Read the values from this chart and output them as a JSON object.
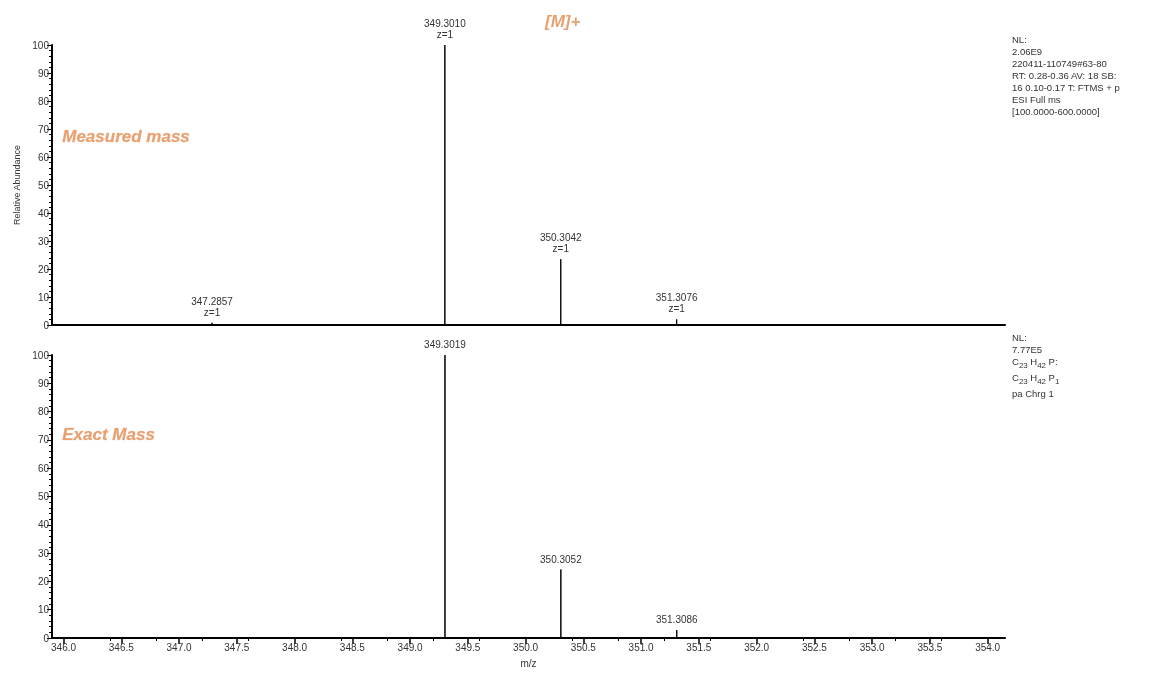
{
  "chart_data": [
    {
      "type": "line",
      "title": "[M]+",
      "ylabel": "Relative Abundance",
      "x": [
        345.9,
        347.2857,
        347.2857,
        347.2857,
        349.301,
        349.301,
        349.301,
        350.3042,
        350.3042,
        350.3042,
        351.3076,
        351.3076,
        351.3076,
        354.15
      ],
      "series": [
        {
          "color": "#000000",
          "values": [
            0,
            0,
            0.8,
            0,
            0,
            100,
            0,
            0,
            23.5,
            0,
            0,
            2,
            0,
            0
          ]
        }
      ],
      "xlim": [
        345.9,
        354.15
      ],
      "ylim": [
        0,
        100
      ],
      "yticks": [
        0,
        10,
        20,
        30,
        40,
        50,
        60,
        70,
        80,
        90,
        100
      ],
      "tick_labels": "y",
      "grid": false,
      "marker": "none",
      "line_style": "solid",
      "annotations": [
        "Measured mass",
        "NL:\n2.06E9\n220411-110749#63-80\nRT: 0.28-0.36  AV: 18 SB:\n16  0.10-0.17  T: FTMS + p\nESI Full ms\n[100.0000-600.0000]",
        {
          "text": "349.3010\nz=1",
          "x": 349.301,
          "y": 100
        },
        {
          "text": "350.3042\nz=1",
          "x": 350.3042,
          "y": 23.5
        },
        {
          "text": "347.2857\nz=1",
          "x": 347.2857,
          "y": 0.8
        },
        {
          "text": "351.3076\nz=1",
          "x": 351.3076,
          "y": 2
        }
      ]
    },
    {
      "type": "line",
      "xlabel": "m/z",
      "x": [
        345.9,
        349.3019,
        349.3019,
        349.3019,
        350.3052,
        350.3052,
        350.3052,
        351.3086,
        351.3086,
        351.3086,
        354.15
      ],
      "series": [
        {
          "color": "#000000",
          "values": [
            0,
            0,
            100,
            0,
            0,
            24.2,
            0,
            0,
            2.8,
            0,
            0
          ]
        }
      ],
      "xlim": [
        345.9,
        354.15
      ],
      "ylim": [
        0,
        100
      ],
      "yticks": [
        0,
        10,
        20,
        30,
        40,
        50,
        60,
        70,
        80,
        90,
        100
      ],
      "xticks": [
        {
          "value": 346,
          "label": "346.0"
        },
        346.5,
        {
          "value": 347,
          "label": "347.0"
        },
        347.5,
        {
          "value": 348,
          "label": "348.0"
        },
        348.5,
        {
          "value": 349,
          "label": "349.0"
        },
        349.5,
        {
          "value": 350,
          "label": "350.0"
        },
        350.5,
        {
          "value": 351,
          "label": "351.0"
        },
        351.5,
        {
          "value": 352,
          "label": "352.0"
        },
        352.5,
        {
          "value": 353,
          "label": "353.0"
        },
        353.5,
        {
          "value": 354,
          "label": "354.0"
        }
      ],
      "grid": false,
      "marker": "none",
      "line_style": "solid",
      "annotations": [
        "Exact Mass",
        "NL:\n7.77E5\nC$_{23}$ H$_{42}$ P:\nC$_{23}$ H$_{42}$ P$_{1}$\npa Chrg 1",
        {
          "text": "349.3019",
          "x": 349.3019,
          "y": 100
        },
        {
          "text": "350.3052",
          "x": 350.3052,
          "y": 24.2
        },
        {
          "text": "351.3086",
          "x": 351.3086,
          "y": 2.8
        }
      ]
    }
  ]
}
